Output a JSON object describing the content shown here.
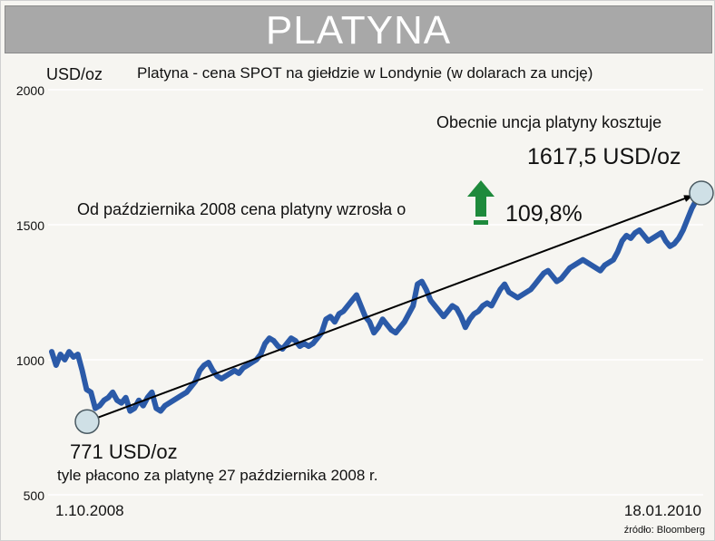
{
  "banner": {
    "title": "PLATYNA"
  },
  "chart_data": {
    "type": "line",
    "title": "Platyna - cena SPOT na giełdzie w Londynie (w dolarach za uncję)",
    "ylabel": "USD/oz",
    "ylim": [
      500,
      2000
    ],
    "yticks": [
      "2000",
      "1500",
      "1000",
      "500"
    ],
    "ytick_values": [
      2000,
      1500,
      1000,
      500
    ],
    "x_start_label": "1.10.2008",
    "x_end_label": "18.01.2010",
    "source": "źródło: Bloomberg",
    "colors": {
      "line": "#2b5aa8",
      "marker_fill": "#cfe0e6",
      "arrow": "#000000",
      "up_arrow": "#1e8a3c",
      "grid": "#ffffff"
    },
    "series": [
      {
        "values": [
          1030,
          980,
          1020,
          1000,
          1030,
          1010,
          1020,
          960,
          890,
          880,
          820,
          830,
          850,
          860,
          880,
          850,
          840,
          860,
          810,
          820,
          850,
          830,
          860,
          880,
          820,
          810,
          830,
          840,
          850,
          860,
          870,
          880,
          900,
          920,
          960,
          980,
          990,
          960,
          940,
          930,
          940,
          950,
          960,
          950,
          970,
          980,
          990,
          1000,
          1020,
          1060,
          1080,
          1070,
          1050,
          1040,
          1060,
          1080,
          1070,
          1050,
          1060,
          1050,
          1060,
          1080,
          1100,
          1150,
          1160,
          1140,
          1170,
          1180,
          1200,
          1220,
          1240,
          1200,
          1160,
          1140,
          1100,
          1120,
          1150,
          1130,
          1110,
          1100,
          1120,
          1140,
          1170,
          1200,
          1280,
          1290,
          1260,
          1220,
          1200,
          1180,
          1160,
          1180,
          1200,
          1190,
          1160,
          1120,
          1150,
          1170,
          1180,
          1200,
          1210,
          1200,
          1230,
          1260,
          1280,
          1250,
          1240,
          1230,
          1240,
          1250,
          1260,
          1280,
          1300,
          1320,
          1330,
          1310,
          1290,
          1300,
          1320,
          1340,
          1350,
          1360,
          1370,
          1360,
          1350,
          1340,
          1330,
          1350,
          1360,
          1370,
          1400,
          1440,
          1460,
          1450,
          1470,
          1480,
          1460,
          1440,
          1450,
          1460,
          1470,
          1440,
          1420,
          1430,
          1450,
          1480,
          1520,
          1560,
          1590,
          1617.5
        ]
      }
    ],
    "start_point": {
      "value": 771,
      "label": "771 USD/oz",
      "caption": "tyle płacono za platynę 27 października 2008 r."
    },
    "end_point": {
      "value": 1617.5,
      "caption": "Obecnie uncja platyny kosztuje",
      "label": "1617,5 USD/oz"
    },
    "change_text": "Od października 2008 cena platyny wzrosła o",
    "change_value": "109,8%"
  }
}
